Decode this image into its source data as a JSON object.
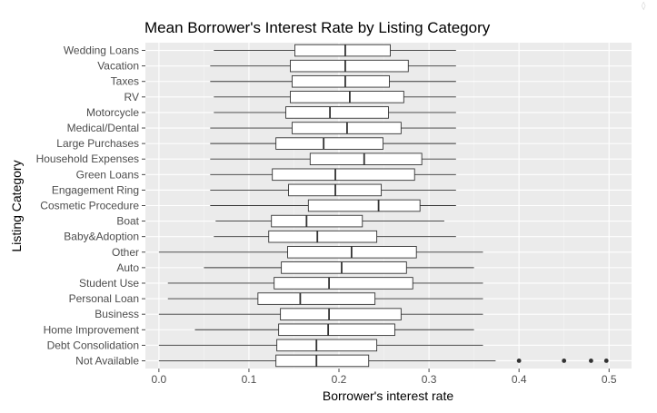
{
  "chart_data": {
    "type": "boxplot",
    "title": "Mean Borrower's Interest Rate by Listing Category",
    "xlabel": "Borrower's interest rate",
    "ylabel": "Listing Category",
    "xlim": [
      -0.015,
      0.525
    ],
    "xticks": [
      0.0,
      0.1,
      0.2,
      0.3,
      0.4,
      0.5
    ],
    "xtick_labels": [
      "0.0",
      "0.1",
      "0.2",
      "0.3",
      "0.4",
      "0.5"
    ],
    "grid": true,
    "colors": {
      "panel_background": "#ebebeb",
      "grid_major": "#ffffff",
      "grid_minor": "#f5f5f5",
      "box_fill": "#ffffff",
      "box_stroke": "#333333",
      "tick_label": "#4d4d4d"
    },
    "categories": [
      "Wedding Loans",
      "Vacation",
      "Taxes",
      "RV",
      "Motorcycle",
      "Medical/Dental",
      "Large Purchases",
      "Household Expenses",
      "Green Loans",
      "Engagement Ring",
      "Cosmetic Procedure",
      "Boat",
      "Baby&Adoption",
      "Other",
      "Auto",
      "Student Use",
      "Personal Loan",
      "Business",
      "Home Improvement",
      "Debt Consolidation",
      "Not Available"
    ],
    "boxes": [
      {
        "min": 0.061,
        "q1": 0.151,
        "median": 0.207,
        "q3": 0.257,
        "max": 0.33,
        "outliers": []
      },
      {
        "min": 0.057,
        "q1": 0.146,
        "median": 0.207,
        "q3": 0.277,
        "max": 0.33,
        "outliers": []
      },
      {
        "min": 0.057,
        "q1": 0.148,
        "median": 0.207,
        "q3": 0.256,
        "max": 0.33,
        "outliers": []
      },
      {
        "min": 0.061,
        "q1": 0.146,
        "median": 0.212,
        "q3": 0.272,
        "max": 0.33,
        "outliers": []
      },
      {
        "min": 0.061,
        "q1": 0.141,
        "median": 0.19,
        "q3": 0.255,
        "max": 0.33,
        "outliers": []
      },
      {
        "min": 0.057,
        "q1": 0.148,
        "median": 0.209,
        "q3": 0.269,
        "max": 0.33,
        "outliers": []
      },
      {
        "min": 0.057,
        "q1": 0.13,
        "median": 0.183,
        "q3": 0.249,
        "max": 0.33,
        "outliers": []
      },
      {
        "min": 0.057,
        "q1": 0.168,
        "median": 0.228,
        "q3": 0.292,
        "max": 0.33,
        "outliers": []
      },
      {
        "min": 0.057,
        "q1": 0.126,
        "median": 0.196,
        "q3": 0.284,
        "max": 0.33,
        "outliers": []
      },
      {
        "min": 0.057,
        "q1": 0.144,
        "median": 0.196,
        "q3": 0.247,
        "max": 0.33,
        "outliers": []
      },
      {
        "min": 0.057,
        "q1": 0.166,
        "median": 0.244,
        "q3": 0.29,
        "max": 0.33,
        "outliers": []
      },
      {
        "min": 0.063,
        "q1": 0.125,
        "median": 0.164,
        "q3": 0.226,
        "max": 0.317,
        "outliers": []
      },
      {
        "min": 0.061,
        "q1": 0.122,
        "median": 0.176,
        "q3": 0.242,
        "max": 0.33,
        "outliers": []
      },
      {
        "min": 0.0,
        "q1": 0.143,
        "median": 0.214,
        "q3": 0.286,
        "max": 0.36,
        "outliers": []
      },
      {
        "min": 0.05,
        "q1": 0.136,
        "median": 0.203,
        "q3": 0.275,
        "max": 0.35,
        "outliers": []
      },
      {
        "min": 0.01,
        "q1": 0.128,
        "median": 0.189,
        "q3": 0.282,
        "max": 0.36,
        "outliers": []
      },
      {
        "min": 0.01,
        "q1": 0.11,
        "median": 0.157,
        "q3": 0.24,
        "max": 0.36,
        "outliers": []
      },
      {
        "min": 0.0,
        "q1": 0.135,
        "median": 0.189,
        "q3": 0.269,
        "max": 0.36,
        "outliers": []
      },
      {
        "min": 0.04,
        "q1": 0.133,
        "median": 0.188,
        "q3": 0.262,
        "max": 0.35,
        "outliers": []
      },
      {
        "min": 0.0,
        "q1": 0.131,
        "median": 0.175,
        "q3": 0.242,
        "max": 0.36,
        "outliers": []
      },
      {
        "min": 0.0,
        "q1": 0.13,
        "median": 0.175,
        "q3": 0.233,
        "max": 0.374,
        "outliers": [
          0.4,
          0.45,
          0.48,
          0.497
        ]
      }
    ]
  }
}
